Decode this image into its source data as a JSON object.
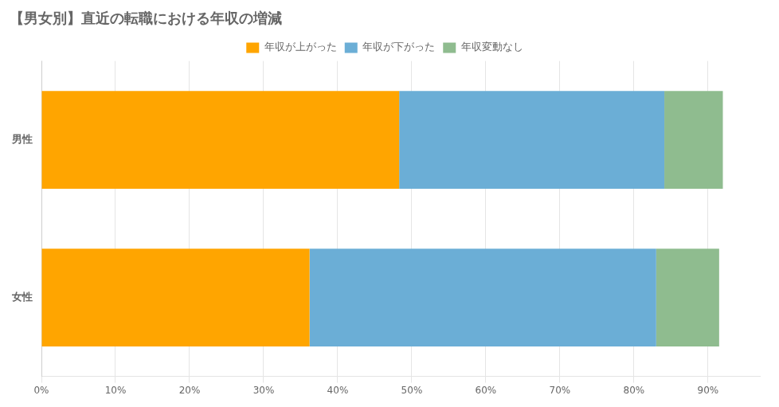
{
  "chart_data": {
    "type": "bar",
    "orientation": "horizontal",
    "stacked": true,
    "title": "【男女別】直近の転職における年収の増減",
    "categories": [
      "男性",
      "女性"
    ],
    "series": [
      {
        "name": "年収が上がった",
        "color": "#FFA500",
        "values": [
          48.3,
          36.2
        ]
      },
      {
        "name": "年収が下がった",
        "color": "#6BAED6",
        "values": [
          35.8,
          46.8
        ]
      },
      {
        "name": "年収変動なし",
        "color": "#8FBC8F",
        "values": [
          7.9,
          8.5
        ]
      }
    ],
    "xlim": [
      0,
      97
    ],
    "xticks": [
      {
        "value": 0,
        "label": "0%"
      },
      {
        "value": 10,
        "label": "10%"
      },
      {
        "value": 20,
        "label": "20%"
      },
      {
        "value": 30,
        "label": "30%"
      },
      {
        "value": 40,
        "label": "40%"
      },
      {
        "value": 50,
        "label": "50%"
      },
      {
        "value": 60,
        "label": "60%"
      },
      {
        "value": 70,
        "label": "70%"
      },
      {
        "value": 80,
        "label": "80%"
      },
      {
        "value": 90,
        "label": "90%"
      }
    ],
    "grid": true,
    "legend": "top"
  }
}
